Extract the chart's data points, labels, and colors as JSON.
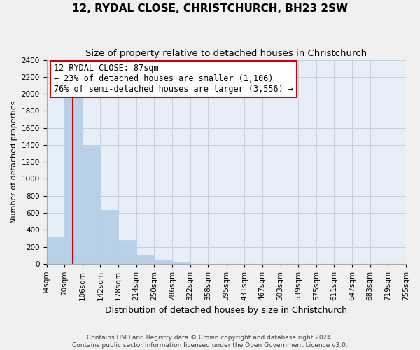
{
  "title": "12, RYDAL CLOSE, CHRISTCHURCH, BH23 2SW",
  "subtitle": "Size of property relative to detached houses in Christchurch",
  "xlabel": "Distribution of detached houses by size in Christchurch",
  "ylabel": "Number of detached properties",
  "bar_edges": [
    34,
    70,
    106,
    142,
    178,
    214,
    250,
    286,
    322,
    358,
    395,
    431,
    467,
    503,
    539,
    575,
    611,
    647,
    683,
    719,
    755
  ],
  "bar_heights": [
    320,
    1950,
    1385,
    630,
    275,
    95,
    45,
    25,
    0,
    0,
    0,
    0,
    0,
    0,
    0,
    0,
    0,
    0,
    0,
    0
  ],
  "bar_color": "#b8d0e8",
  "bar_edge_color": "#b8d0e8",
  "redline_x": 87,
  "redline_color": "#cc0000",
  "annotation_line1": "12 RYDAL CLOSE: 87sqm",
  "annotation_line2": "← 23% of detached houses are smaller (1,106)",
  "annotation_line3": "76% of semi-detached houses are larger (3,556) →",
  "annotation_box_color": "#ffffff",
  "annotation_box_edgecolor": "#cc0000",
  "ylim": [
    0,
    2400
  ],
  "yticks": [
    0,
    200,
    400,
    600,
    800,
    1000,
    1200,
    1400,
    1600,
    1800,
    2000,
    2200,
    2400
  ],
  "x_tick_labels": [
    "34sqm",
    "70sqm",
    "106sqm",
    "142sqm",
    "178sqm",
    "214sqm",
    "250sqm",
    "286sqm",
    "322sqm",
    "358sqm",
    "395sqm",
    "431sqm",
    "467sqm",
    "503sqm",
    "539sqm",
    "575sqm",
    "611sqm",
    "647sqm",
    "683sqm",
    "719sqm",
    "755sqm"
  ],
  "footer_text": "Contains HM Land Registry data © Crown copyright and database right 2024.\nContains public sector information licensed under the Open Government Licence v3.0.",
  "bg_color": "#f0f0f0",
  "plot_bg_color": "#e8eef5",
  "grid_color": "#c8d0dc",
  "title_fontsize": 11,
  "subtitle_fontsize": 9.5,
  "xlabel_fontsize": 9,
  "ylabel_fontsize": 8,
  "annotation_fontsize": 8.5,
  "tick_fontsize": 7.5,
  "footer_fontsize": 6.5
}
